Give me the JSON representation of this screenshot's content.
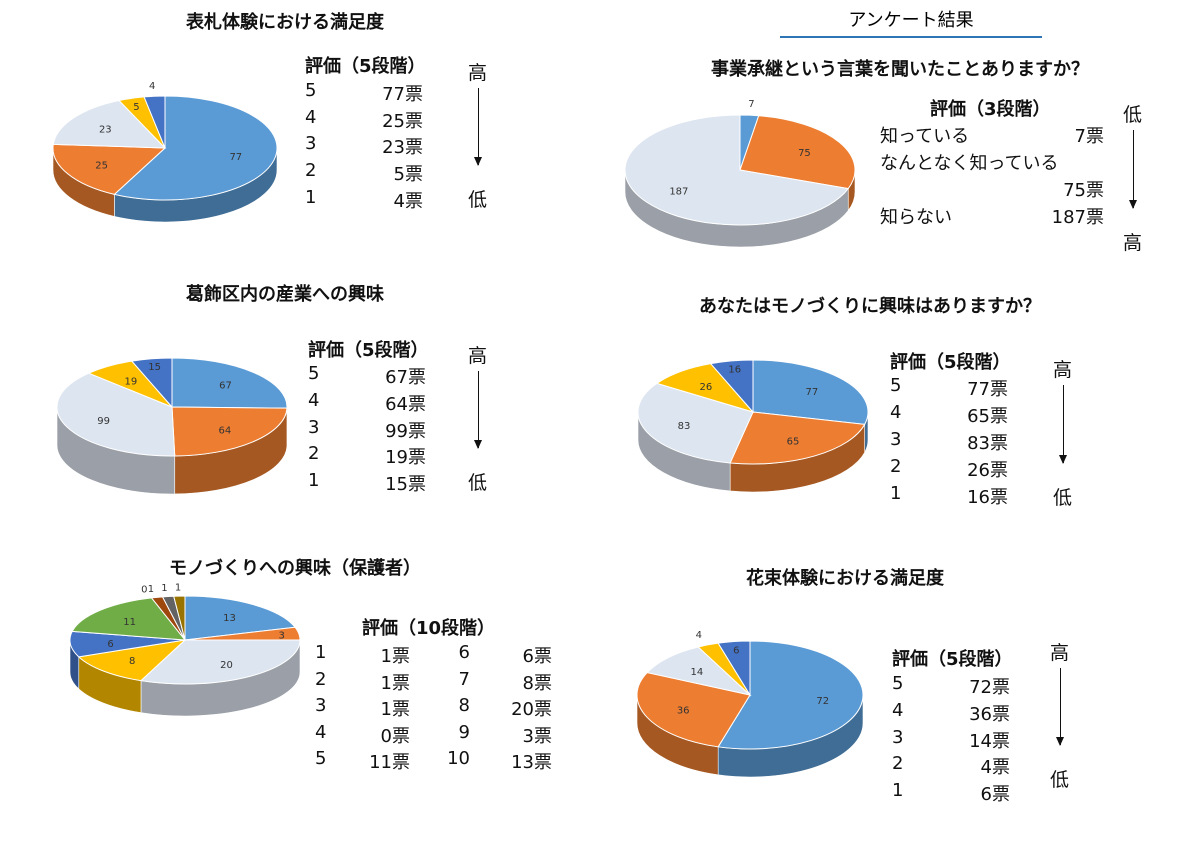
{
  "heading": "アンケート結果",
  "colors": {
    "palette5": [
      "#5b9bd5",
      "#ed7d31",
      "#dde5f0",
      "#ffc000",
      "#4472c4"
    ],
    "palette3": [
      "#5b9bd5",
      "#ed7d31",
      "#dde5f0"
    ],
    "palette10": [
      "#5b9bd5",
      "#ed7d31",
      "#dde5f0",
      "#ffc000",
      "#4472c4",
      "#70ad47",
      "#264478",
      "#9e480e",
      "#636363",
      "#997300"
    ]
  },
  "chart_data": [
    {
      "type": "pie",
      "style": "3d",
      "title": "表札体験における満足度",
      "categories": [
        "5",
        "4",
        "3",
        "2",
        "1"
      ],
      "values": [
        77,
        25,
        23,
        5,
        4
      ],
      "legend_header": "評価（5段階）",
      "legend_rows": [
        [
          "5",
          "77票"
        ],
        [
          "4",
          "25票"
        ],
        [
          "3",
          "23票"
        ],
        [
          "2",
          "5票"
        ],
        [
          "1",
          "4票"
        ]
      ],
      "scale_top": "高",
      "scale_bottom": "低"
    },
    {
      "type": "pie",
      "style": "3d",
      "title": "事業承継という言葉を聞いたことありますか？",
      "categories": [
        "知っている",
        "なんとなく知っている",
        "知らない"
      ],
      "values": [
        7,
        75,
        187
      ],
      "legend_header": "評価（3段階）",
      "legend_rows": [
        [
          "知っている",
          "7票"
        ],
        [
          "なんとなく知っている",
          ""
        ],
        [
          "",
          "75票"
        ],
        [
          "知らない",
          "187票"
        ]
      ],
      "scale_top": "低",
      "scale_bottom": "高"
    },
    {
      "type": "pie",
      "style": "3d",
      "title": "葛飾区内の産業への興味",
      "categories": [
        "5",
        "4",
        "3",
        "2",
        "1"
      ],
      "values": [
        67,
        64,
        99,
        19,
        15
      ],
      "legend_header": "評価（5段階）",
      "legend_rows": [
        [
          "5",
          "67票"
        ],
        [
          "4",
          "64票"
        ],
        [
          "3",
          "99票"
        ],
        [
          "2",
          "19票"
        ],
        [
          "1",
          "15票"
        ]
      ],
      "scale_top": "高",
      "scale_bottom": "低"
    },
    {
      "type": "pie",
      "style": "3d",
      "title": "あなたはモノづくりに興味はありますか？",
      "categories": [
        "5",
        "4",
        "3",
        "2",
        "1"
      ],
      "values": [
        77,
        65,
        83,
        26,
        16
      ],
      "legend_header": "評価（5段階）",
      "legend_rows": [
        [
          "5",
          "77票"
        ],
        [
          "4",
          "65票"
        ],
        [
          "3",
          "83票"
        ],
        [
          "2",
          "26票"
        ],
        [
          "1",
          "16票"
        ]
      ],
      "scale_top": "高",
      "scale_bottom": "低"
    },
    {
      "type": "pie",
      "style": "3d",
      "title": "モノづくりへの興味（保護者）",
      "categories": [
        "10",
        "9",
        "8",
        "7",
        "6",
        "5",
        "4",
        "3",
        "2",
        "1"
      ],
      "values": [
        13,
        3,
        20,
        8,
        6,
        11,
        0,
        1,
        1,
        1
      ],
      "legend_header": "評価（10段階）",
      "legend_rows": [
        [
          "1",
          "1票",
          "6",
          "6票"
        ],
        [
          "2",
          "1票",
          "7",
          "8票"
        ],
        [
          "3",
          "1票",
          "8",
          "20票"
        ],
        [
          "4",
          "0票",
          "9",
          "3票"
        ],
        [
          "5",
          "11票",
          "10",
          "13票"
        ]
      ]
    },
    {
      "type": "pie",
      "style": "3d",
      "title": "花束体験における満足度",
      "categories": [
        "5",
        "4",
        "3",
        "2",
        "1"
      ],
      "values": [
        72,
        36,
        14,
        4,
        6
      ],
      "legend_header": "評価（5段階）",
      "legend_rows": [
        [
          "5",
          "72票"
        ],
        [
          "4",
          "36票"
        ],
        [
          "3",
          "14票"
        ],
        [
          "2",
          "4票"
        ],
        [
          "1",
          "6票"
        ]
      ],
      "scale_top": "高",
      "scale_bottom": "低"
    }
  ]
}
